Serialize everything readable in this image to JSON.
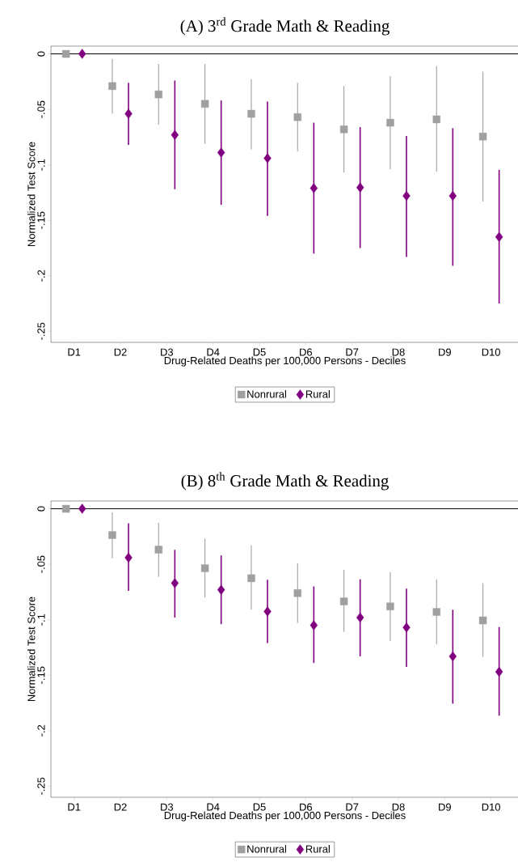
{
  "chart_data": [
    {
      "type": "scatter",
      "title": "(A) 3$^{rd}$ Grade Math & Reading",
      "xlabel": "Drug-Related Deaths per 100,000 Persons - Deciles",
      "ylabel": "Normalized Test Score",
      "categories": [
        "D1",
        "D2",
        "D3",
        "D4",
        "D5",
        "D6",
        "D7",
        "D8",
        "D9",
        "D10"
      ],
      "series": [
        {
          "name": "Nonrural",
          "color": "#a0a0a0",
          "marker": "square",
          "values": [
            0,
            -0.029,
            -0.0365,
            -0.045,
            -0.054,
            -0.057,
            -0.068,
            -0.062,
            -0.059,
            -0.0745
          ],
          "errors": [
            null,
            [
              -0.054,
              -0.0045
            ],
            [
              -0.064,
              -0.009
            ],
            [
              -0.081,
              -0.009
            ],
            [
              -0.086,
              -0.023
            ],
            [
              -0.088,
              -0.026
            ],
            [
              -0.107,
              -0.029
            ],
            [
              -0.104,
              -0.02
            ],
            [
              -0.106,
              -0.011
            ],
            [
              -0.133,
              -0.016
            ]
          ]
        },
        {
          "name": "Rural",
          "color": "#800080",
          "marker": "diamond",
          "values": [
            0,
            -0.054,
            -0.073,
            -0.089,
            -0.094,
            -0.121,
            -0.1204,
            -0.128,
            -0.128,
            -0.165
          ],
          "errors": [
            null,
            [
              -0.082,
              -0.026
            ],
            [
              -0.122,
              -0.024
            ],
            [
              -0.136,
              -0.042
            ],
            [
              -0.146,
              -0.043
            ],
            [
              -0.18,
              -0.062
            ],
            [
              -0.175,
              -0.066
            ],
            [
              -0.183,
              -0.074
            ],
            [
              -0.191,
              -0.067
            ],
            [
              -0.225,
              -0.1045
            ]
          ]
        }
      ],
      "ylim": [
        -0.26,
        0.007
      ],
      "yticks": [
        0,
        {
          "value": -0.05,
          "label": "-.05"
        },
        {
          "value": -0.1,
          "label": "-.1"
        },
        {
          "value": -0.15,
          "label": "-.15"
        },
        {
          "value": -0.2,
          "label": "-.2"
        },
        {
          "value": -0.25,
          "label": "-.25"
        }
      ],
      "ref_lines": [
        {
          "axis": "y",
          "value": 0,
          "color": "#000000"
        }
      ],
      "legend": "bottom"
    },
    {
      "type": "scatter",
      "title": "(B) 8$^{th}$ Grade Math & Reading",
      "xlabel": "Drug-Related Deaths per 100,000 Persons - Deciles",
      "ylabel": "Normalized Test Score",
      "categories": [
        "D1",
        "D2",
        "D3",
        "D4",
        "D5",
        "D6",
        "D7",
        "D8",
        "D9",
        "D10"
      ],
      "series": [
        {
          "name": "Nonrural",
          "color": "#a0a0a0",
          "marker": "square",
          "values": [
            0,
            -0.0237,
            -0.0368,
            -0.0536,
            -0.0626,
            -0.076,
            -0.0835,
            -0.088,
            -0.093,
            -0.1006
          ],
          "errors": [
            null,
            [
              -0.0446,
              -0.0033
            ],
            [
              -0.0614,
              -0.0126
            ],
            [
              -0.08,
              -0.027
            ],
            [
              -0.091,
              -0.033
            ],
            [
              -0.103,
              -0.049
            ],
            [
              -0.111,
              -0.055
            ],
            [
              -0.119,
              -0.057
            ],
            [
              -0.122,
              -0.0635
            ],
            [
              -0.1335,
              -0.067
            ]
          ]
        },
        {
          "name": "Rural",
          "color": "#800080",
          "marker": "diamond",
          "values": [
            0,
            -0.044,
            -0.067,
            -0.073,
            -0.0925,
            -0.105,
            -0.098,
            -0.107,
            -0.133,
            -0.147
          ],
          "errors": [
            null,
            [
              -0.074,
              -0.013
            ],
            [
              -0.098,
              -0.037
            ],
            [
              -0.104,
              -0.042
            ],
            [
              -0.121,
              -0.064
            ],
            [
              -0.139,
              -0.07
            ],
            [
              -0.133,
              -0.0635
            ],
            [
              -0.1425,
              -0.072
            ],
            [
              -0.1757,
              -0.091
            ],
            [
              -0.1865,
              -0.1066
            ]
          ]
        }
      ],
      "ylim": [
        -0.26,
        0.007
      ],
      "yticks": [
        0,
        {
          "value": -0.05,
          "label": "-.05"
        },
        {
          "value": -0.1,
          "label": "-.1"
        },
        {
          "value": -0.15,
          "label": "-.15"
        },
        {
          "value": -0.2,
          "label": "-.2"
        },
        {
          "value": -0.25,
          "label": "-.25"
        }
      ],
      "ref_lines": [
        {
          "axis": "y",
          "value": 0,
          "color": "#000000"
        }
      ],
      "legend": "bottom"
    }
  ]
}
